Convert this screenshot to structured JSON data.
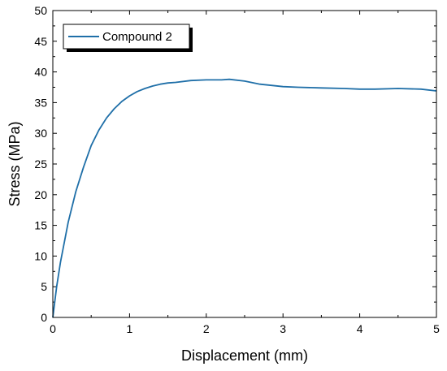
{
  "chart_data": {
    "type": "line",
    "title": "",
    "xlabel": "Displacement (mm)",
    "ylabel": "Stress (MPa)",
    "xlim": [
      0,
      5
    ],
    "ylim": [
      0,
      50
    ],
    "x_ticks": [
      0,
      1,
      2,
      3,
      4,
      5
    ],
    "y_ticks": [
      0,
      5,
      10,
      15,
      20,
      25,
      30,
      35,
      40,
      45,
      50
    ],
    "grid": false,
    "legend_position": "top-left",
    "series": [
      {
        "name": "Compound 2",
        "color": "#1f6fa8",
        "x": [
          0,
          0.05,
          0.1,
          0.2,
          0.3,
          0.4,
          0.5,
          0.6,
          0.7,
          0.8,
          0.9,
          1.0,
          1.1,
          1.2,
          1.3,
          1.4,
          1.5,
          1.6,
          1.8,
          2.0,
          2.2,
          2.3,
          2.5,
          2.7,
          3.0,
          3.2,
          3.5,
          3.8,
          4.0,
          4.2,
          4.5,
          4.8,
          5.0
        ],
        "y": [
          0,
          5,
          9,
          15.5,
          20.5,
          24.5,
          28,
          30.5,
          32.5,
          34,
          35.2,
          36.1,
          36.8,
          37.3,
          37.7,
          38,
          38.2,
          38.3,
          38.6,
          38.7,
          38.7,
          38.8,
          38.5,
          38.0,
          37.6,
          37.5,
          37.4,
          37.3,
          37.2,
          37.2,
          37.3,
          37.2,
          36.9
        ]
      }
    ]
  }
}
